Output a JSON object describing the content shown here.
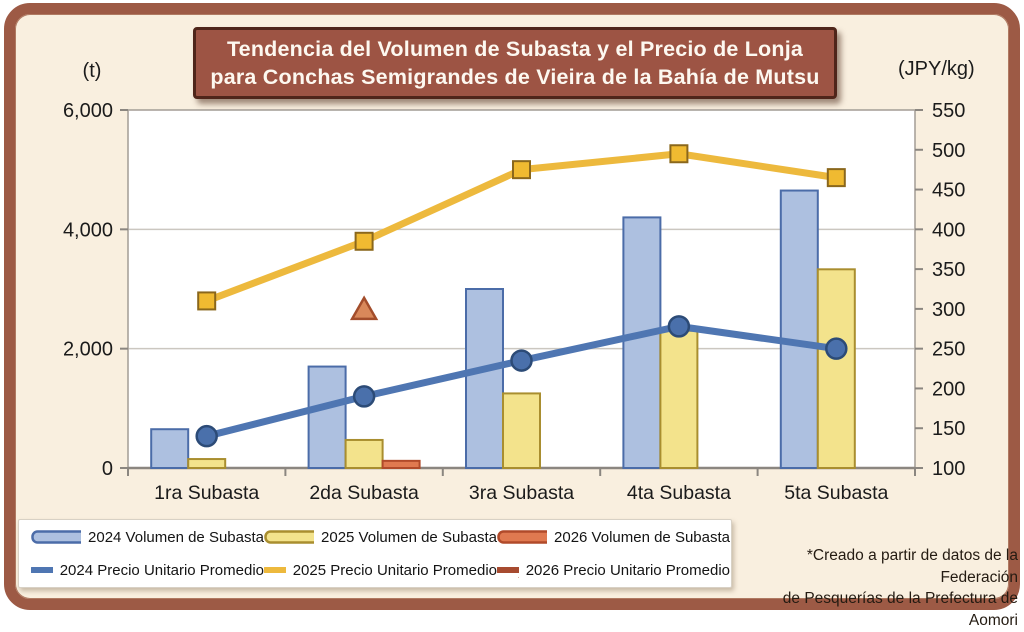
{
  "title": {
    "line1": "Tendencia del Volumen de Subasta y el Precio de Lonja",
    "line2": "para Conchas Semigrandes de Vieira de la Bahía de Mutsu"
  },
  "axis_units": {
    "left": "(t)",
    "right": "(JPY/kg)"
  },
  "footnote": {
    "line1": "*Creado a partir de datos de la Federación",
    "line2": "de Pesquerías de la Prefectura de Aomori"
  },
  "colors": {
    "frame": "#9d5a45",
    "page_background": "#f9efdf",
    "title_background": "#9d5444",
    "title_border": "#4f251a",
    "plot_background": "#ffffff",
    "plot_border": "#a8a29b",
    "gridline": "#cbc7c0",
    "axis_line": "#8b8680",
    "bar_2024_fill": "#adc0e0",
    "bar_2024_stroke": "#4b6ca8",
    "bar_2025_fill": "#f3e38c",
    "bar_2025_stroke": "#a98e2f",
    "bar_2026_fill": "#e07950",
    "bar_2026_stroke": "#b14a2a",
    "line_2024": "#4f76b2",
    "line_2025": "#edb93d",
    "line_2026": "#a74b30"
  },
  "chart_data": {
    "type": "bar+line combo",
    "categories": [
      "1ra Subasta",
      "2da Subasta",
      "3ra Subasta",
      "4ta Subasta",
      "5ta Subasta"
    ],
    "left_axis": {
      "unit": "(t)",
      "min": 0,
      "max": 6000,
      "tick_step": 2000,
      "ticks": [
        0,
        2000,
        4000,
        6000
      ],
      "tick_labels": [
        "0",
        "2,000",
        "4,000",
        "6,000"
      ]
    },
    "right_axis": {
      "unit": "(JPY/kg)",
      "min": 100,
      "max": 550,
      "tick_step": 50,
      "ticks": [
        100,
        150,
        200,
        250,
        300,
        350,
        400,
        450,
        500,
        550
      ]
    },
    "grid": "horizontal only",
    "legend_position": "bottom-left box, two rows",
    "series": [
      {
        "name": "2024 Volumen de Subasta",
        "type": "bar",
        "axis": "left",
        "values": [
          650,
          1700,
          3000,
          4200,
          4650
        ],
        "fill": "#adc0e0",
        "stroke": "#4b6ca8"
      },
      {
        "name": "2025 Volumen de Subasta",
        "type": "bar",
        "axis": "left",
        "values": [
          150,
          470,
          1250,
          2300,
          3330
        ],
        "fill": "#f3e38c",
        "stroke": "#a98e2f"
      },
      {
        "name": "2026 Volumen de Subasta",
        "type": "bar",
        "axis": "left",
        "values": [
          null,
          120,
          null,
          null,
          null
        ],
        "fill": "#e07950",
        "stroke": "#b14a2a"
      },
      {
        "name": "2024 Precio Unitario Promedio",
        "type": "line",
        "axis": "right",
        "marker": "circle",
        "values": [
          140,
          190,
          235,
          278,
          250
        ],
        "color": "#4f76b2",
        "markerFill": "#4a70ab",
        "markerStroke": "#2c4b77"
      },
      {
        "name": "2025 Precio Unitario Promedio",
        "type": "line",
        "axis": "right",
        "marker": "square",
        "values": [
          310,
          385,
          475,
          495,
          465
        ],
        "color": "#edb93d",
        "markerFill": "#f0ba31",
        "markerStroke": "#8a671c"
      },
      {
        "name": "2026 Precio Unitario Promedio",
        "type": "line",
        "axis": "right",
        "marker": "triangle",
        "values": [
          null,
          300,
          null,
          null,
          null
        ],
        "color": "#a74b30",
        "markerFill": "#d9885a",
        "markerStroke": "#a34d2b"
      }
    ]
  }
}
